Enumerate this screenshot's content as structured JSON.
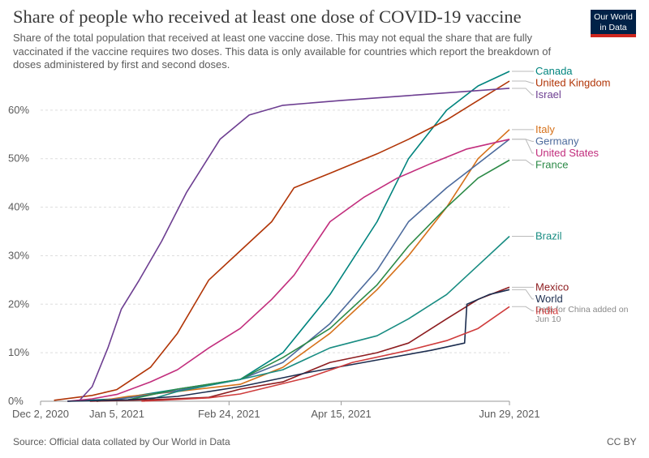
{
  "header": {
    "title": "Share of people who received at least one dose of COVID-19 vaccine",
    "subtitle": "Share of the total population that received at least one vaccine dose. This may not equal the share that are fully vaccinated if the vaccine requires two doses. This data is only available for countries which report the breakdown of doses administered by first and second doses."
  },
  "logo": {
    "line1": "Our World",
    "line2": "in Data",
    "bg": "#002147",
    "accent": "#ce261e"
  },
  "footer": {
    "source": "Source: Official data collated by Our World in Data",
    "license": "CC BY"
  },
  "chart_data": {
    "type": "line",
    "xlabel": "",
    "ylabel": "",
    "x_range": [
      "2020-12-02",
      "2021-06-29"
    ],
    "ylim": [
      0,
      68
    ],
    "y_ticks": [
      0,
      10,
      20,
      30,
      40,
      50,
      60
    ],
    "y_tick_labels": [
      "0%",
      "10%",
      "20%",
      "30%",
      "40%",
      "50%",
      "60%"
    ],
    "x_ticks": [
      "2020-12-02",
      "2021-01-05",
      "2021-02-24",
      "2021-04-15",
      "2021-06-29"
    ],
    "x_tick_labels": [
      "Dec 2, 2020",
      "Jan 5, 2021",
      "Feb 24, 2021",
      "Apr 15, 2021",
      "Jun 29, 2021"
    ],
    "grid": "horizontal dashed",
    "legend": "right, labels at line ends",
    "series": [
      {
        "name": "Canada",
        "color": "#00847e",
        "points": [
          [
            "2020-12-14",
            0
          ],
          [
            "2021-01-05",
            0.5
          ],
          [
            "2021-02-01",
            2.5
          ],
          [
            "2021-03-01",
            4.5
          ],
          [
            "2021-03-20",
            10
          ],
          [
            "2021-04-10",
            22
          ],
          [
            "2021-05-01",
            37
          ],
          [
            "2021-05-15",
            50
          ],
          [
            "2021-06-01",
            60
          ],
          [
            "2021-06-15",
            65
          ],
          [
            "2021-06-29",
            68
          ]
        ]
      },
      {
        "name": "United Kingdom",
        "color": "#b13507",
        "points": [
          [
            "2020-12-08",
            0.2
          ],
          [
            "2020-12-25",
            1.2
          ],
          [
            "2021-01-05",
            2.4
          ],
          [
            "2021-01-20",
            7
          ],
          [
            "2021-02-01",
            14
          ],
          [
            "2021-02-15",
            25
          ],
          [
            "2021-03-01",
            31
          ],
          [
            "2021-03-15",
            37
          ],
          [
            "2021-03-25",
            44
          ],
          [
            "2021-04-10",
            47
          ],
          [
            "2021-05-01",
            51
          ],
          [
            "2021-05-15",
            54
          ],
          [
            "2021-06-01",
            58
          ],
          [
            "2021-06-15",
            62
          ],
          [
            "2021-06-29",
            66
          ]
        ]
      },
      {
        "name": "Israel",
        "color": "#6d3e91",
        "points": [
          [
            "2020-12-19",
            0
          ],
          [
            "2020-12-25",
            3
          ],
          [
            "2021-01-01",
            11
          ],
          [
            "2021-01-07",
            19
          ],
          [
            "2021-01-15",
            25
          ],
          [
            "2021-01-25",
            33
          ],
          [
            "2021-02-05",
            43
          ],
          [
            "2021-02-20",
            54
          ],
          [
            "2021-03-05",
            59
          ],
          [
            "2021-03-20",
            61
          ],
          [
            "2021-04-15",
            62
          ],
          [
            "2021-05-15",
            63
          ],
          [
            "2021-06-29",
            64.5
          ]
        ]
      },
      {
        "name": "Italy",
        "color": "#d6711a",
        "points": [
          [
            "2020-12-27",
            0
          ],
          [
            "2021-01-10",
            1
          ],
          [
            "2021-02-01",
            2
          ],
          [
            "2021-03-01",
            3.5
          ],
          [
            "2021-03-20",
            7
          ],
          [
            "2021-04-10",
            14
          ],
          [
            "2021-05-01",
            23
          ],
          [
            "2021-05-15",
            30
          ],
          [
            "2021-06-01",
            40
          ],
          [
            "2021-06-15",
            50
          ],
          [
            "2021-06-29",
            56
          ]
        ]
      },
      {
        "name": "Germany",
        "color": "#4c6a9c",
        "points": [
          [
            "2020-12-27",
            0
          ],
          [
            "2021-01-10",
            0.7
          ],
          [
            "2021-02-01",
            2.2
          ],
          [
            "2021-03-01",
            4.5
          ],
          [
            "2021-03-20",
            8
          ],
          [
            "2021-04-10",
            16
          ],
          [
            "2021-05-01",
            27
          ],
          [
            "2021-05-15",
            37
          ],
          [
            "2021-06-01",
            44
          ],
          [
            "2021-06-15",
            49
          ],
          [
            "2021-06-29",
            54
          ]
        ]
      },
      {
        "name": "United States",
        "color": "#c22e7d",
        "points": [
          [
            "2020-12-14",
            0
          ],
          [
            "2020-12-25",
            0.5
          ],
          [
            "2021-01-05",
            1.4
          ],
          [
            "2021-01-20",
            4
          ],
          [
            "2021-02-01",
            6.5
          ],
          [
            "2021-02-15",
            11
          ],
          [
            "2021-03-01",
            15
          ],
          [
            "2021-03-15",
            21
          ],
          [
            "2021-03-25",
            26
          ],
          [
            "2021-04-10",
            37
          ],
          [
            "2021-04-25",
            42
          ],
          [
            "2021-05-10",
            46
          ],
          [
            "2021-05-25",
            49
          ],
          [
            "2021-06-10",
            52
          ],
          [
            "2021-06-29",
            54
          ]
        ]
      },
      {
        "name": "France",
        "color": "#2c8a47",
        "points": [
          [
            "2020-12-27",
            0
          ],
          [
            "2021-01-10",
            0.3
          ],
          [
            "2021-02-01",
            2.5
          ],
          [
            "2021-03-01",
            4.5
          ],
          [
            "2021-03-20",
            9
          ],
          [
            "2021-04-10",
            15
          ],
          [
            "2021-05-01",
            24
          ],
          [
            "2021-05-15",
            32
          ],
          [
            "2021-06-01",
            40
          ],
          [
            "2021-06-15",
            46
          ],
          [
            "2021-06-29",
            49.7
          ]
        ]
      },
      {
        "name": "Brazil",
        "color": "#188c82",
        "points": [
          [
            "2021-01-17",
            0
          ],
          [
            "2021-02-01",
            2
          ],
          [
            "2021-03-01",
            4.5
          ],
          [
            "2021-03-20",
            6.5
          ],
          [
            "2021-04-10",
            11
          ],
          [
            "2021-05-01",
            13.5
          ],
          [
            "2021-05-15",
            17
          ],
          [
            "2021-06-01",
            22
          ],
          [
            "2021-06-15",
            28
          ],
          [
            "2021-06-29",
            34
          ]
        ]
      },
      {
        "name": "Mexico",
        "color": "#8d1c1f",
        "points": [
          [
            "2020-12-24",
            0
          ],
          [
            "2021-01-20",
            0.3
          ],
          [
            "2021-02-15",
            0.8
          ],
          [
            "2021-03-01",
            2.5
          ],
          [
            "2021-03-20",
            4
          ],
          [
            "2021-04-10",
            8
          ],
          [
            "2021-05-01",
            10
          ],
          [
            "2021-05-15",
            12
          ],
          [
            "2021-06-01",
            17
          ],
          [
            "2021-06-15",
            21
          ],
          [
            "2021-06-29",
            23.5
          ]
        ]
      },
      {
        "name": "World",
        "color": "#1c2d4f",
        "points": [
          [
            "2020-12-14",
            0
          ],
          [
            "2021-01-10",
            0.3
          ],
          [
            "2021-02-01",
            1
          ],
          [
            "2021-03-01",
            3
          ],
          [
            "2021-04-01",
            6
          ],
          [
            "2021-05-01",
            8.5
          ],
          [
            "2021-05-25",
            10.5
          ],
          [
            "2021-06-09",
            12
          ],
          [
            "2021-06-10",
            20
          ],
          [
            "2021-06-20",
            22
          ],
          [
            "2021-06-29",
            23
          ]
        ]
      },
      {
        "name": "India",
        "color": "#cf3c3c",
        "points": [
          [
            "2021-01-16",
            0
          ],
          [
            "2021-02-15",
            0.7
          ],
          [
            "2021-03-01",
            1.5
          ],
          [
            "2021-04-01",
            5
          ],
          [
            "2021-04-20",
            8
          ],
          [
            "2021-05-15",
            10.5
          ],
          [
            "2021-06-01",
            12.5
          ],
          [
            "2021-06-15",
            15
          ],
          [
            "2021-06-29",
            19.5
          ]
        ]
      }
    ],
    "annotations": [
      {
        "series": "World",
        "text": "Data for China added on Jun 10"
      }
    ]
  }
}
